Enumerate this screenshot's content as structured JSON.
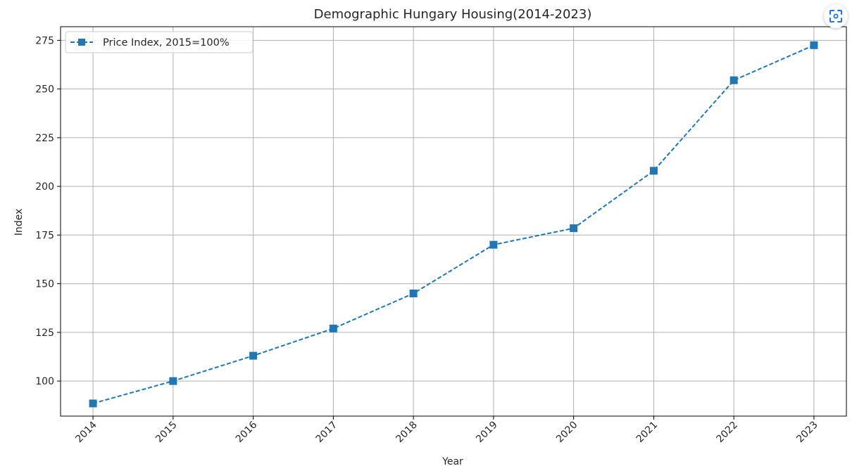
{
  "colors": {
    "series": "#1f77b4",
    "grid": "#b0b0b0",
    "axis": "#000000",
    "text": "#262626",
    "button_icon": "#1a73e8"
  },
  "toolbar": {
    "expand_icon": "focus-expand-icon"
  },
  "chart_data": {
    "type": "line",
    "title": "Demographic Hungary Housing(2014-2023)",
    "xlabel": "Year",
    "ylabel": "Index",
    "x": [
      2014,
      2015,
      2016,
      2017,
      2018,
      2019,
      2020,
      2021,
      2022,
      2023
    ],
    "xticks": [
      "2014",
      "2015",
      "2016",
      "2017",
      "2018",
      "2019",
      "2020",
      "2021",
      "2022",
      "2023"
    ],
    "yticks": [
      "100",
      "125",
      "150",
      "175",
      "200",
      "225",
      "250",
      "275"
    ],
    "ylim": [
      82,
      282
    ],
    "grid": true,
    "legend_position": "upper-left",
    "series": [
      {
        "name": "Price Index, 2015=100%",
        "values": [
          88.5,
          100,
          113,
          127,
          145,
          170,
          178.5,
          208,
          254.5,
          272.5
        ],
        "linestyle": "dashed",
        "marker": "square"
      }
    ]
  }
}
